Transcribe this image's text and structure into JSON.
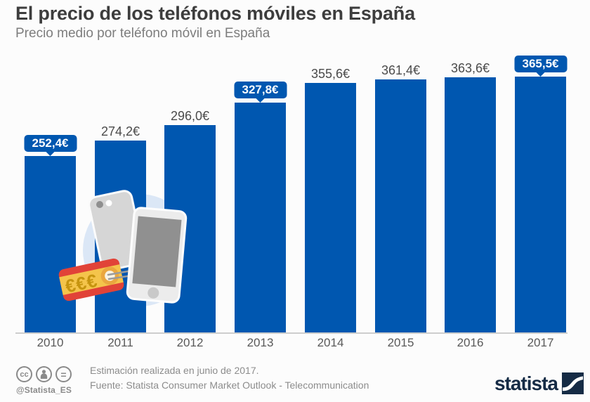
{
  "header": {
    "title": "El precio de los teléfonos móviles en España",
    "subtitle": "Precio medio por teléfono móvil en España"
  },
  "chart_data": {
    "type": "bar",
    "categories": [
      "2010",
      "2011",
      "2012",
      "2013",
      "2014",
      "2015",
      "2016",
      "2017"
    ],
    "values": [
      252.4,
      274.2,
      296.0,
      327.8,
      355.6,
      361.4,
      363.6,
      365.5
    ],
    "values_display": [
      "252,4€",
      "274,2€",
      "296,0€",
      "327,8€",
      "355,6€",
      "361,4€",
      "363,6€",
      "365,5€"
    ],
    "badge_indices": [
      0,
      3,
      7
    ],
    "unit": "€",
    "title": "El precio de los teléfonos móviles en España",
    "subtitle": "Precio medio por teléfono móvil en España",
    "xlabel": "",
    "ylabel": "",
    "ylim": [
      0,
      400
    ],
    "grid": false,
    "legend": false,
    "bar_color": "#0057b0",
    "illustration": "two-smartphones-with-euro-price-tag"
  },
  "footer": {
    "license_icons": [
      "cc-icon",
      "attribution-person-icon",
      "no-derivatives-icon"
    ],
    "cc_label": "cc",
    "nd_label": "=",
    "handle": "@Statista_ES",
    "note": "Estimación realizada en junio de 2017.",
    "source": "Fuente: Statista Consumer Market Outlook - Telecommunication",
    "brand": "statista"
  },
  "colors": {
    "bar_blue": "#0057b0",
    "badge_blue": "#0057b0",
    "title_gray": "#3d3d3d",
    "subtitle_gray": "#7d7d7d",
    "value_label_gray": "#4b4b4b",
    "axis_line_gray": "#cdcdcd",
    "footer_gray": "#8c8c8c",
    "logo_navy": "#152b45",
    "illustration_circle_blue": "#dbe7f6",
    "tag_red": "#e14338",
    "tag_yellow": "#f4c44b",
    "tag_euro_gold": "#c6940f",
    "background": "#fcfcfc"
  }
}
